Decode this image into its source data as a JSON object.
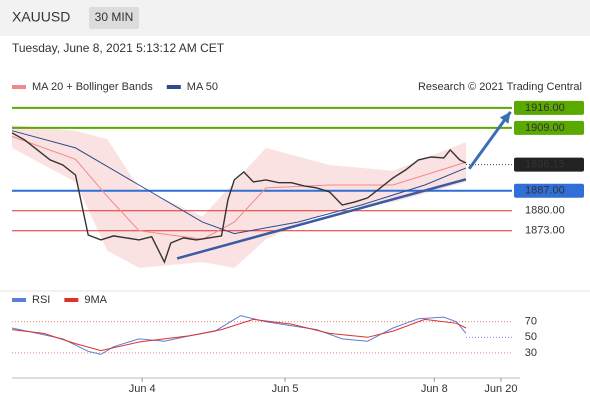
{
  "header": {
    "symbol": "XAUUSD",
    "timeframe": "30 MIN",
    "datetime": "Tuesday, June 8, 2021 5:13:12 AM CET"
  },
  "chart_data": [
    {
      "type": "line",
      "legend_note": "Research © 2021 Trading Central",
      "color": "#333333",
      "x": [
        0,
        4,
        8,
        12,
        16,
        20,
        24,
        28,
        32,
        36,
        40,
        44,
        48,
        50,
        54,
        58,
        62,
        66,
        68,
        70,
        73,
        76,
        80,
        84,
        88,
        92,
        96,
        100,
        104,
        108,
        112,
        116,
        120,
        124,
        128,
        132,
        136,
        138,
        141,
        143
      ],
      "values": [
        1907.25,
        1904.8,
        1901.3,
        1897.8,
        1896,
        1892.5,
        1871.5,
        1869.8,
        1871.2,
        1870.5,
        1869.8,
        1870.9,
        1862,
        1868.7,
        1870.5,
        1869.8,
        1870.5,
        1871.2,
        1883.8,
        1890.8,
        1893.6,
        1890.1,
        1890.8,
        1889.8,
        1889.8,
        1888.7,
        1888,
        1886.6,
        1882,
        1883.1,
        1884.5,
        1888,
        1891.5,
        1894.3,
        1897.8,
        1898.8,
        1898.5,
        1901.3,
        1897.8,
        1896.7
      ],
      "series": [
        {
          "name": "MA 20 + Bollinger Bands",
          "color": "#f08a8a",
          "x": [
            0,
            20,
            30,
            40,
            60,
            70,
            80,
            100,
            120,
            143
          ],
          "values": [
            1906,
            1898,
            1885,
            1873,
            1870,
            1876,
            1888,
            1889,
            1889,
            1897
          ],
          "band_upper": [
            1910,
            1908,
            1905,
            1888,
            1878,
            1890,
            1902,
            1896,
            1894,
            1904
          ],
          "band_lower": [
            1902,
            1890,
            1866,
            1860,
            1862,
            1860,
            1870,
            1880,
            1883,
            1890
          ]
        },
        {
          "name": "MA 50",
          "color": "#2e4a8c",
          "x": [
            0,
            20,
            40,
            60,
            70,
            90,
            110,
            130,
            143
          ],
          "values": [
            1908,
            1902,
            1889,
            1876,
            1872,
            1876,
            1882,
            1889,
            1895
          ]
        }
      ],
      "levels": [
        {
          "value": 1916,
          "label": "1916.00",
          "color": "#5aa800",
          "style": "box"
        },
        {
          "value": 1909,
          "label": "1909.00",
          "color": "#5aa800",
          "style": "box"
        },
        {
          "value": 1887,
          "label": "1887.00",
          "color": "#2f6fd6",
          "style": "box"
        },
        {
          "value": 1880,
          "label": "1880.00",
          "color": "#e0302a",
          "style": "text"
        },
        {
          "value": 1873,
          "label": "1873.00",
          "color": "#e0302a",
          "style": "text"
        }
      ],
      "current": {
        "value": 1896.15,
        "label": "1896.15",
        "color": "#222222"
      },
      "trendline": {
        "color": "#3b5ba5",
        "x": [
          52,
          143
        ],
        "values": [
          1863.3,
          1891
        ]
      },
      "projection": {
        "color": "#3b6fb5",
        "x": [
          144,
          157
        ],
        "values": [
          1894.7,
          1914.6
        ]
      },
      "xlim": [
        0,
        160
      ],
      "ylim": [
        1854,
        1920.5
      ]
    },
    {
      "type": "line",
      "series": [
        {
          "name": "RSI",
          "color": "#5b7fd6",
          "x": [
            0,
            8,
            16,
            20,
            24,
            28,
            32,
            40,
            48,
            56,
            64,
            68,
            72,
            80,
            88,
            96,
            104,
            112,
            120,
            128,
            136,
            140,
            143
          ],
          "values": [
            62,
            55,
            48,
            40,
            32,
            28,
            38,
            48,
            45,
            52,
            58,
            68,
            78,
            70,
            65,
            60,
            48,
            45,
            62,
            74,
            76,
            70,
            55
          ]
        },
        {
          "name": "9MA",
          "color": "#e0302a",
          "x": [
            0,
            10,
            20,
            28,
            40,
            56,
            66,
            76,
            88,
            100,
            112,
            120,
            130,
            140,
            143
          ],
          "values": [
            60,
            55,
            42,
            33,
            44,
            52,
            60,
            73,
            67,
            55,
            50,
            58,
            73,
            68,
            62
          ]
        }
      ],
      "xlim": [
        0,
        160
      ],
      "ylim": [
        8,
        98
      ],
      "yticks": [
        30,
        50,
        70
      ],
      "xticks": [
        {
          "value": 41,
          "label": "Jun 4"
        },
        {
          "value": 86,
          "label": "Jun 5"
        },
        {
          "value": 133,
          "label": "Jun 8"
        },
        {
          "value": 154,
          "label": "Jun 20"
        }
      ]
    }
  ]
}
